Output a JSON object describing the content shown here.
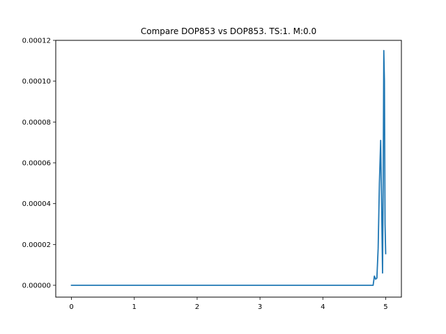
{
  "chart_data": {
    "type": "line",
    "title": "Compare DOP853 vs DOP853. TS:1. M:0.0",
    "xlabel": "",
    "ylabel": "",
    "xlim": [
      -0.25,
      5.25
    ],
    "ylim": [
      -5.8e-06,
      0.00012
    ],
    "x_ticks": [
      0,
      1,
      2,
      3,
      4,
      5
    ],
    "x_tick_labels": [
      "0",
      "1",
      "2",
      "3",
      "4",
      "5"
    ],
    "y_ticks": [
      0,
      2e-05,
      4e-05,
      6e-05,
      8e-05,
      0.0001,
      0.00012
    ],
    "y_tick_labels": [
      "0.00000",
      "0.00002",
      "0.00004",
      "0.00006",
      "0.00008",
      "0.00010",
      "0.00012"
    ],
    "grid": false,
    "legend": "none",
    "series": [
      {
        "color": "#1f77b4",
        "x": [
          0,
          1,
          2,
          3,
          4,
          4.6,
          4.8,
          4.82,
          4.84,
          4.86,
          4.88,
          4.9,
          4.92,
          4.935,
          4.95,
          4.96,
          4.97,
          4.98,
          4.99,
          5.0
        ],
        "y": [
          0,
          0,
          0,
          0,
          0,
          0,
          0,
          4.5e-06,
          3e-06,
          3.5e-06,
          1.8e-05,
          5e-05,
          7.1e-05,
          4e-05,
          6e-06,
          5e-05,
          0.000115,
          0.0001,
          3e-05,
          1.55e-05
        ]
      }
    ]
  }
}
